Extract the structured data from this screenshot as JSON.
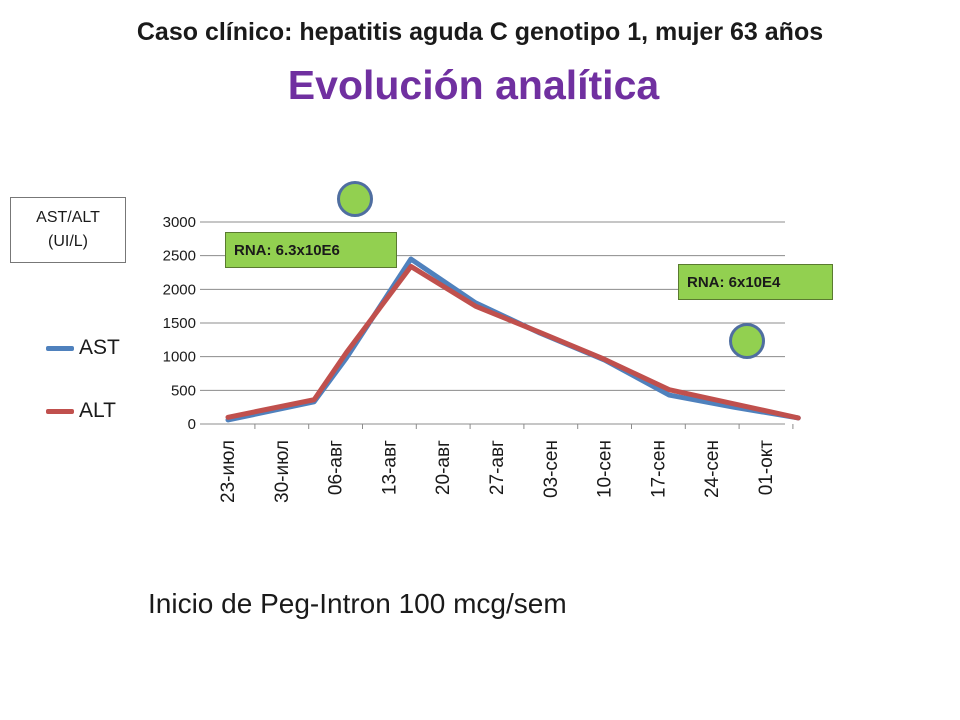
{
  "header": {
    "subtitle": "Caso clínico: hepatitis aguda C genotipo 1, mujer 63 años",
    "title": "Evolución analítica"
  },
  "axis_box": {
    "label_line1": "AST/ALT",
    "label_line2": "(UI/L)"
  },
  "annotations": {
    "rna_first": "RNA: 6.3x10E6",
    "rna_second": "RNA: 6x10E4"
  },
  "footnote": "Inicio de Peg-Intron 100 mcg/sem",
  "colors": {
    "AST": "#4f81bd",
    "ALT": "#c0504d",
    "marker_fill": "#92d050",
    "title": "#7030a0"
  },
  "chart_data": {
    "type": "line",
    "title": "",
    "xlabel": "",
    "ylabel": "AST/ALT (UI/L)",
    "x": [
      "23-июл",
      "30-июл",
      "06-авг",
      "13-авг",
      "20-авг",
      "27-авг",
      "03-сен",
      "10-сен",
      "17-сен",
      "24-сен",
      "01-окт"
    ],
    "x_tick_positions": [
      0,
      1,
      2,
      3,
      4,
      5,
      6,
      7,
      8,
      9,
      10
    ],
    "ylim": [
      0,
      3000
    ],
    "yticks": [
      0,
      500,
      1000,
      1500,
      2000,
      2500,
      3000
    ],
    "grid": "horizontal",
    "legend": "left",
    "series": [
      {
        "name": "AST",
        "points": [
          [
            0,
            60
          ],
          [
            1.6,
            330
          ],
          [
            2.2,
            980
          ],
          [
            3.4,
            2450
          ],
          [
            4.6,
            1800
          ],
          [
            5.8,
            1350
          ],
          [
            7.0,
            950
          ],
          [
            8.2,
            430
          ],
          [
            9.4,
            250
          ],
          [
            10.6,
            90
          ]
        ]
      },
      {
        "name": "ALT",
        "points": [
          [
            0,
            100
          ],
          [
            1.6,
            360
          ],
          [
            2.2,
            1060
          ],
          [
            3.4,
            2340
          ],
          [
            4.6,
            1750
          ],
          [
            5.8,
            1360
          ],
          [
            7.0,
            960
          ],
          [
            8.2,
            510
          ],
          [
            9.4,
            300
          ],
          [
            10.6,
            90
          ]
        ]
      }
    ]
  }
}
